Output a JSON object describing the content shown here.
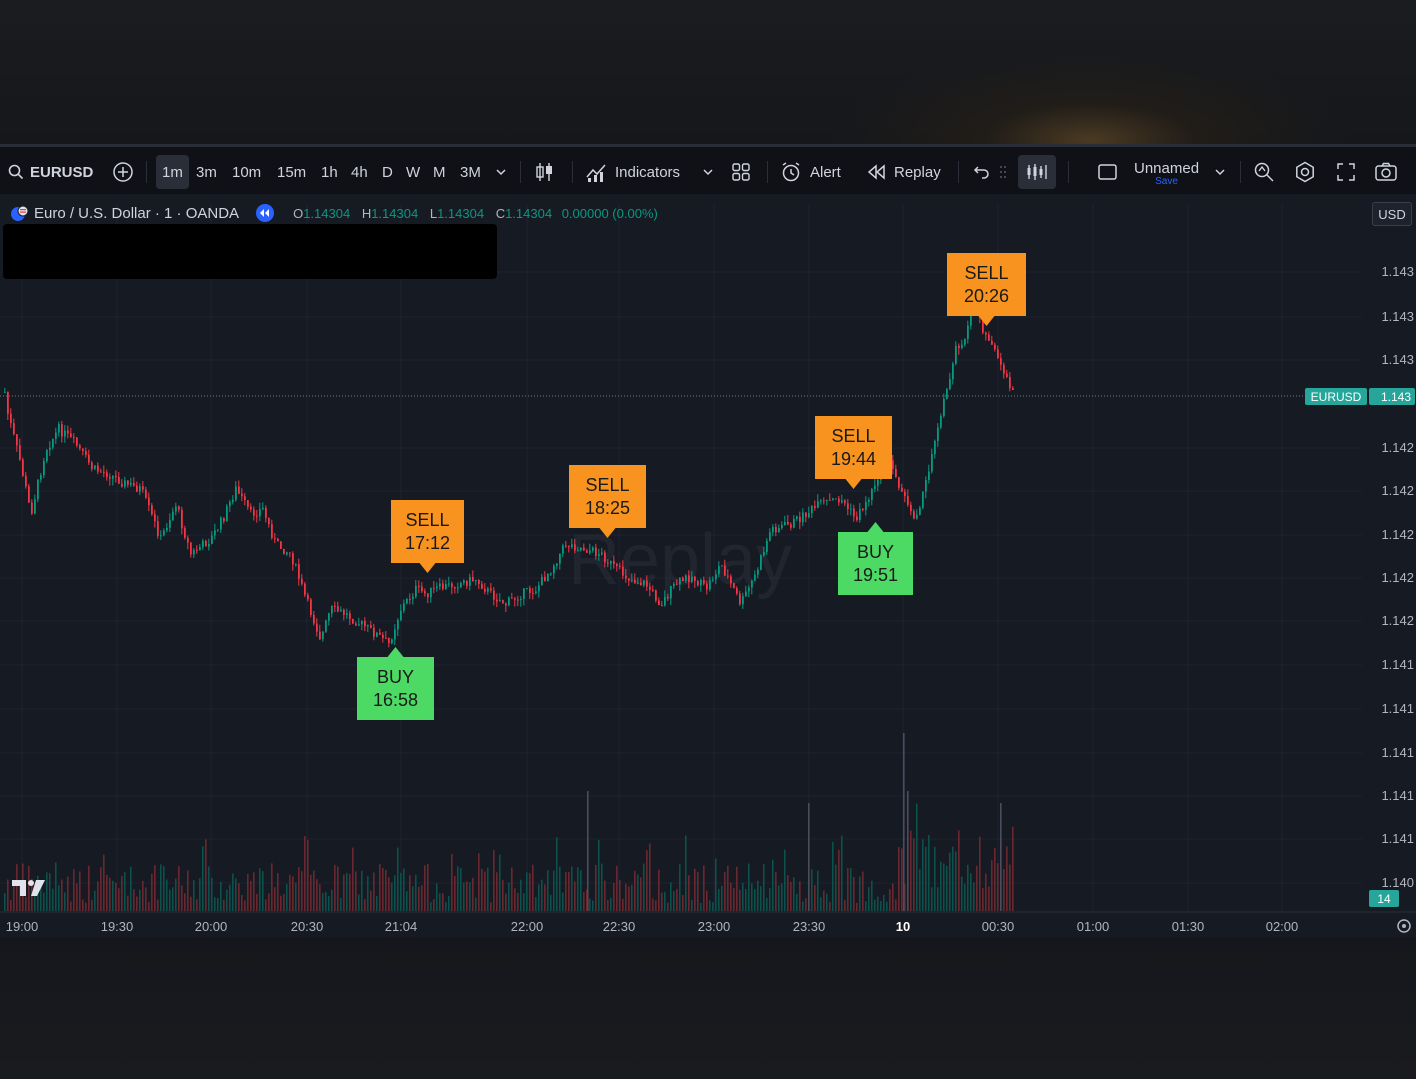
{
  "toolbar": {
    "symbol": "EURUSD",
    "timeframes": [
      "1m",
      "3m",
      "10m",
      "15m",
      "1h",
      "4h",
      "D",
      "W",
      "M",
      "3M"
    ],
    "active_timeframe": "1m",
    "indicators_label": "Indicators",
    "alert_label": "Alert",
    "replay_label": "Replay",
    "layout_name": "Unnamed",
    "layout_save": "Save"
  },
  "infobar": {
    "title": "Euro / U.S. Dollar · 1 · OANDA",
    "o_label": "O",
    "o": "1.14304",
    "h_label": "H",
    "h": "1.14304",
    "l_label": "L",
    "l": "1.14304",
    "c_label": "C",
    "c": "1.14304",
    "change": "0.00000 (0.00%)"
  },
  "currency": "USD",
  "watermark": "Replay",
  "price_axis": {
    "labels": [
      "1.143",
      "1.143",
      "1.143",
      "1.142",
      "1.142",
      "1.142",
      "1.142",
      "1.142",
      "1.141",
      "1.141",
      "1.141",
      "1.141",
      "1.141",
      "1.140"
    ],
    "current_symbol": "EURUSD",
    "current_price": "1.143",
    "volume_badge": "14"
  },
  "time_axis": {
    "labels": [
      "19:00",
      "19:30",
      "20:00",
      "20:30",
      "21:04",
      "22:00",
      "22:30",
      "23:00",
      "23:30",
      "10",
      "00:30",
      "01:00",
      "01:30",
      "02:00"
    ]
  },
  "signals": [
    {
      "type": "BUY",
      "time": "16:58"
    },
    {
      "type": "SELL",
      "time": "17:12"
    },
    {
      "type": "SELL",
      "time": "18:25"
    },
    {
      "type": "SELL",
      "time": "19:44"
    },
    {
      "type": "BUY",
      "time": "19:51"
    },
    {
      "type": "SELL",
      "time": "20:26"
    }
  ],
  "colors": {
    "up": "#089981",
    "down": "#f23645",
    "sell": "#f7931e",
    "buy": "#4cd964",
    "price_line": "#26a69a"
  }
}
